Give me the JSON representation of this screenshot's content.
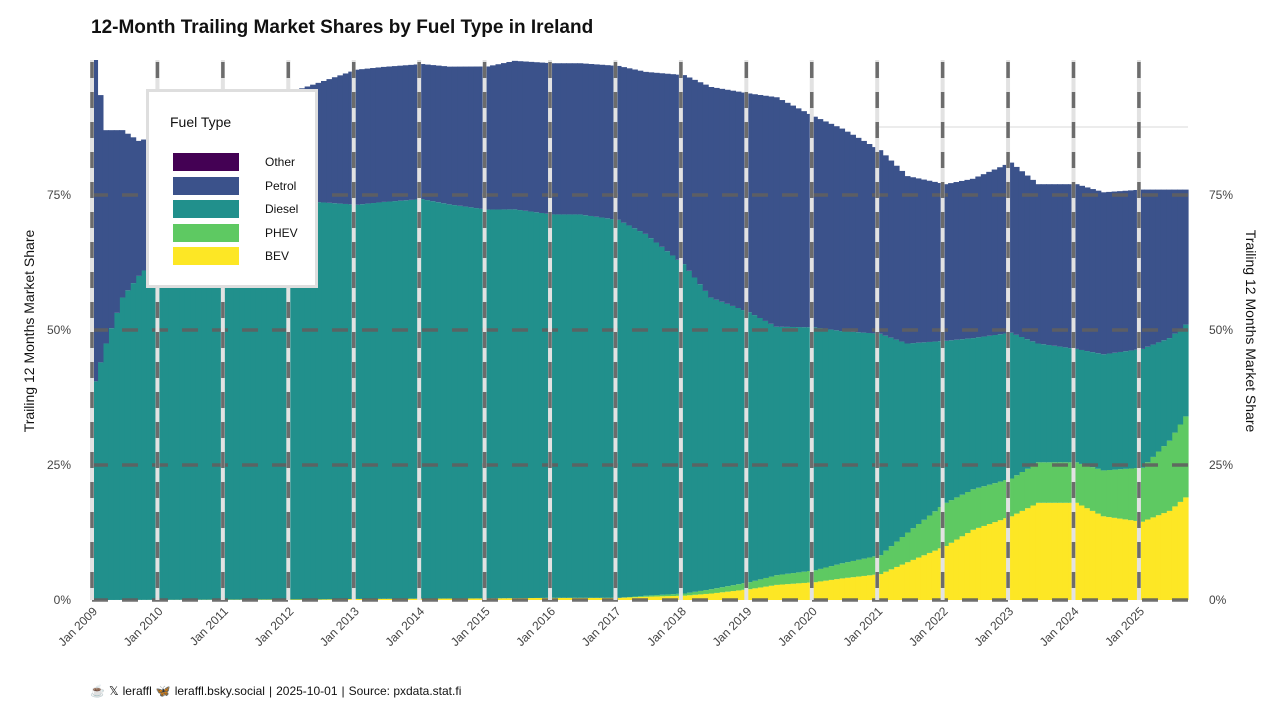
{
  "chart_data": {
    "type": "area",
    "title": "12-Month Trailing Market Shares by Fuel Type in Ireland",
    "ylabel": "Trailing 12 Months Market Share",
    "ylim": [
      0,
      100
    ],
    "y_ticks": [
      "0%",
      "25%",
      "50%",
      "75%"
    ],
    "x_ticks": [
      "Jan 2009",
      "Jan 2010",
      "Jan 2011",
      "Jan 2012",
      "Jan 2013",
      "Jan 2014",
      "Jan 2015",
      "Jan 2016",
      "Jan 2017",
      "Jan 2018",
      "Jan 2019",
      "Jan 2020",
      "Jan 2021",
      "Jan 2022",
      "Jan 2023",
      "Jan 2024",
      "Jan 2025"
    ],
    "legend_title": "Fuel Type",
    "legend_position": "top-left",
    "grid": true,
    "stack_order": [
      "BEV",
      "PHEV",
      "Diesel",
      "Petrol",
      "Other"
    ],
    "x_start": "2009-01",
    "x_end": "2025-09",
    "x_step": "month",
    "series": [
      {
        "name": "Other",
        "color": "#440154",
        "points": [
          [
            "2009-01",
            0.0
          ],
          [
            "2025-09",
            0.0
          ]
        ]
      },
      {
        "name": "Petrol",
        "color": "#3b528b",
        "points": [
          [
            "2009-01",
            59.5
          ],
          [
            "2009-03",
            39.5
          ],
          [
            "2009-06",
            31
          ],
          [
            "2009-09",
            25
          ],
          [
            "2010-01",
            22
          ],
          [
            "2010-06",
            20
          ],
          [
            "2011-01",
            19
          ],
          [
            "2012-01",
            20
          ],
          [
            "2013-01",
            25
          ],
          [
            "2013-06",
            25
          ],
          [
            "2014-01",
            25
          ],
          [
            "2014-06",
            25.5
          ],
          [
            "2015-01",
            26.5
          ],
          [
            "2015-06",
            27.5
          ],
          [
            "2016-01",
            28
          ],
          [
            "2016-06",
            28
          ],
          [
            "2017-01",
            28.5
          ],
          [
            "2017-06",
            30
          ],
          [
            "2018-01",
            35
          ],
          [
            "2018-06",
            39
          ],
          [
            "2019-01",
            40.5
          ],
          [
            "2019-06",
            42.5
          ],
          [
            "2020-01",
            39
          ],
          [
            "2020-06",
            37.5
          ],
          [
            "2021-01",
            34
          ],
          [
            "2021-06",
            31
          ],
          [
            "2022-01",
            29
          ],
          [
            "2022-06",
            29.5
          ],
          [
            "2023-01",
            31.5
          ],
          [
            "2023-06",
            29.5
          ],
          [
            "2024-01",
            30.5
          ],
          [
            "2024-06",
            30
          ],
          [
            "2025-01",
            29.5
          ],
          [
            "2025-06",
            27.5
          ],
          [
            "2025-09",
            25
          ]
        ]
      },
      {
        "name": "Diesel",
        "color": "#21908c",
        "points": [
          [
            "2009-01",
            40.5
          ],
          [
            "2009-03",
            47.5
          ],
          [
            "2009-06",
            56
          ],
          [
            "2009-09",
            60
          ],
          [
            "2010-01",
            64
          ],
          [
            "2010-06",
            70
          ],
          [
            "2011-01",
            72
          ],
          [
            "2012-01",
            74
          ],
          [
            "2013-01",
            73
          ],
          [
            "2013-06",
            73.5
          ],
          [
            "2014-01",
            74
          ],
          [
            "2014-06",
            73
          ],
          [
            "2015-01",
            72
          ],
          [
            "2015-06",
            72
          ],
          [
            "2016-01",
            71
          ],
          [
            "2016-06",
            71
          ],
          [
            "2017-01",
            70
          ],
          [
            "2017-06",
            67
          ],
          [
            "2018-01",
            61
          ],
          [
            "2018-06",
            54
          ],
          [
            "2019-01",
            50
          ],
          [
            "2019-06",
            46
          ],
          [
            "2020-01",
            45
          ],
          [
            "2020-06",
            43
          ],
          [
            "2021-01",
            41
          ],
          [
            "2021-06",
            35
          ],
          [
            "2022-01",
            30
          ],
          [
            "2022-06",
            28
          ],
          [
            "2023-01",
            27
          ],
          [
            "2023-06",
            22
          ],
          [
            "2024-01",
            21
          ],
          [
            "2024-06",
            21.5
          ],
          [
            "2025-01",
            22
          ],
          [
            "2025-06",
            19
          ],
          [
            "2025-09",
            17
          ]
        ]
      },
      {
        "name": "PHEV",
        "color": "#5ec962",
        "points": [
          [
            "2009-01",
            0
          ],
          [
            "2017-01",
            0
          ],
          [
            "2017-06",
            0.2
          ],
          [
            "2018-01",
            0.4
          ],
          [
            "2018-06",
            0.8
          ],
          [
            "2019-01",
            1.3
          ],
          [
            "2019-06",
            1.8
          ],
          [
            "2020-01",
            2.2
          ],
          [
            "2020-06",
            2.8
          ],
          [
            "2021-01",
            3.5
          ],
          [
            "2021-06",
            5.5
          ],
          [
            "2022-01",
            8
          ],
          [
            "2022-06",
            7.5
          ],
          [
            "2023-01",
            7
          ],
          [
            "2023-06",
            7.5
          ],
          [
            "2024-01",
            7.5
          ],
          [
            "2024-06",
            8.5
          ],
          [
            "2025-01",
            10
          ],
          [
            "2025-06",
            13
          ],
          [
            "2025-09",
            15
          ]
        ]
      },
      {
        "name": "BEV",
        "color": "#fde725",
        "points": [
          [
            "2009-01",
            0
          ],
          [
            "2012-06",
            0.1
          ],
          [
            "2013-01",
            0.2
          ],
          [
            "2015-01",
            0.3
          ],
          [
            "2016-01",
            0.4
          ],
          [
            "2017-01",
            0.4
          ],
          [
            "2017-06",
            0.6
          ],
          [
            "2018-01",
            0.8
          ],
          [
            "2018-06",
            1.2
          ],
          [
            "2019-01",
            2
          ],
          [
            "2019-06",
            2.8
          ],
          [
            "2020-01",
            3.3
          ],
          [
            "2020-06",
            4
          ],
          [
            "2021-01",
            4.8
          ],
          [
            "2021-06",
            7
          ],
          [
            "2022-01",
            10
          ],
          [
            "2022-06",
            13
          ],
          [
            "2023-01",
            15.5
          ],
          [
            "2023-06",
            18
          ],
          [
            "2024-01",
            18
          ],
          [
            "2024-06",
            15.5
          ],
          [
            "2025-01",
            14.5
          ],
          [
            "2025-06",
            16.5
          ],
          [
            "2025-09",
            19
          ]
        ]
      }
    ]
  },
  "caption": {
    "handle_x": "leraffl",
    "handle_bsky": "leraffl.bsky.social",
    "date": "2025-10-01",
    "source": "Source: pxdata.stat.fi",
    "separator": "|",
    "icons": [
      "coffee-icon",
      "x-icon",
      "butterfly-icon"
    ]
  }
}
